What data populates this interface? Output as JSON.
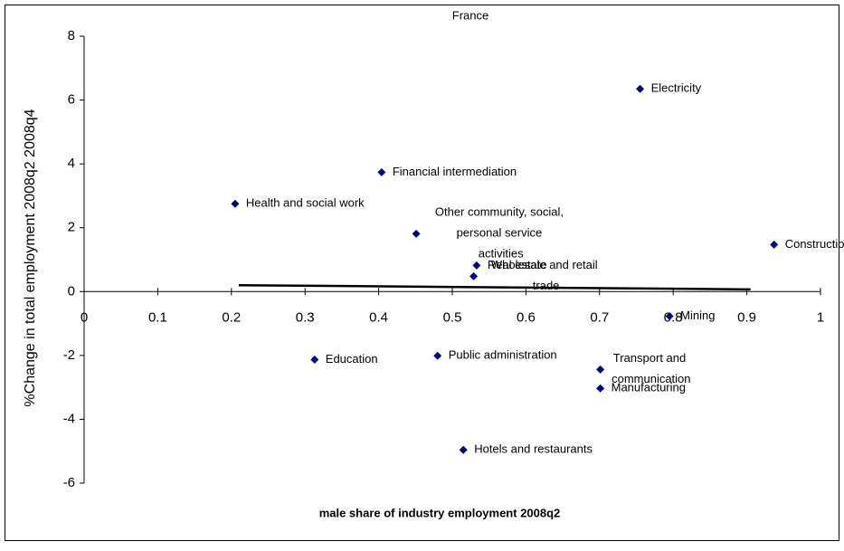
{
  "chart_data": {
    "type": "scatter",
    "title": "France",
    "x_label": "male share of industry employment 2008q2",
    "y_label": "%Change in total employment 2008q2 2008q4",
    "series": [
      {
        "color": "#000080",
        "labels": [
          "Electricity",
          "Financial intermediation",
          "Health and social work",
          "Other community, social, personal service activities",
          "Construction",
          "Real estate",
          "Wholesale and retail trade",
          "Mining",
          "Education",
          "Public administration",
          "Transport and communication",
          "Manufacturing",
          "Hotels and restaurants"
        ],
        "x": [
          0.755,
          0.404,
          0.205,
          0.451,
          0.937,
          0.533,
          0.529,
          0.795,
          0.313,
          0.48,
          0.701,
          0.701,
          0.515
        ],
        "values": [
          6.35,
          3.74,
          2.75,
          1.81,
          1.47,
          0.82,
          0.48,
          -0.77,
          -2.13,
          -2.01,
          -2.44,
          -3.03,
          -4.96
        ]
      }
    ],
    "trendline": {
      "x": [
        0.21,
        0.905
      ],
      "values": [
        0.2,
        0.07
      ],
      "color": "#000000"
    },
    "xlim": [
      0,
      1
    ],
    "xticks": [
      0,
      0.1,
      0.2,
      0.3,
      0.4,
      0.5,
      0.6,
      0.7,
      0.8,
      0.9,
      1
    ],
    "ylim": [
      -6,
      8
    ],
    "yticks": [
      -6,
      -4,
      -2,
      0,
      2,
      4,
      6,
      8
    ]
  }
}
